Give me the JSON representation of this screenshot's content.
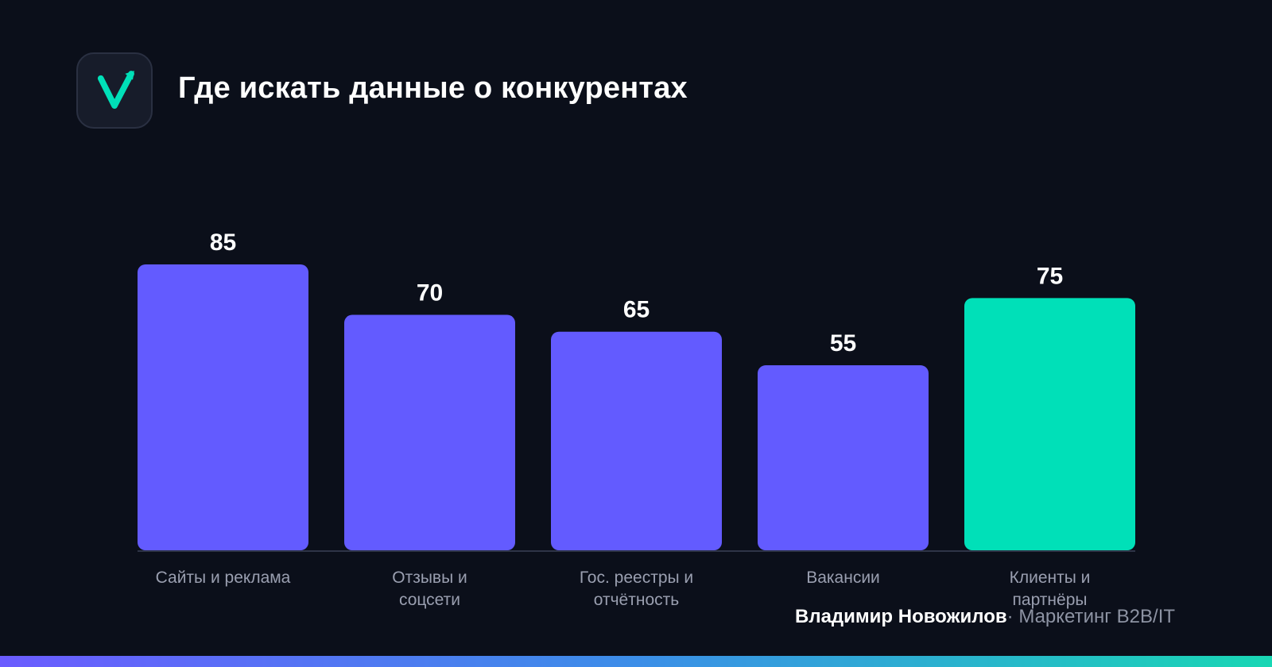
{
  "header": {
    "title": "Где искать данные о конкурентах",
    "logo_icon": "checkmark-arrow-icon"
  },
  "colors": {
    "background": "#0b0f1a",
    "bar": "#635bff",
    "highlight": "#00e0b8",
    "text": "#ffffff",
    "muted": "#9a9fb0"
  },
  "chart_data": {
    "type": "bar",
    "title": "Где искать данные о конкурентах",
    "categories": [
      "Сайты и реклама",
      "Отзывы и соцсети",
      "Гос. реестры и отчётность",
      "Вакансии",
      "Клиенты и партнёры"
    ],
    "category_lines": [
      [
        "Сайты и реклама"
      ],
      [
        "Отзывы и",
        "соцсети"
      ],
      [
        "Гос. реестры и",
        "отчётность"
      ],
      [
        "Вакансии"
      ],
      [
        "Клиенты и",
        "партнёры"
      ]
    ],
    "values": [
      85,
      70,
      65,
      55,
      75
    ],
    "highlight_index": 4,
    "ylim": [
      0,
      85
    ],
    "grid": false,
    "xlabel": "",
    "ylabel": ""
  },
  "footer": {
    "author": "Владимир Новожилов",
    "separator": "·",
    "role": "Маркетинг B2B/IT"
  }
}
